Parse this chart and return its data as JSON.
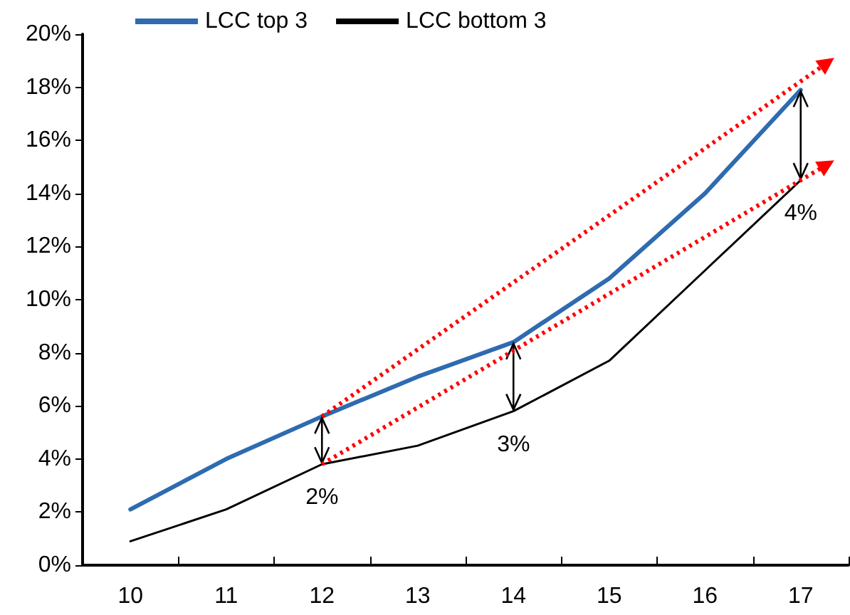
{
  "chart_data": {
    "type": "line",
    "categories": [
      "10",
      "11",
      "12",
      "13",
      "14",
      "15",
      "16",
      "17"
    ],
    "series": [
      {
        "name": "LCC top 3",
        "color": "#2e6bb0",
        "values": [
          2.1,
          4.0,
          5.6,
          7.1,
          8.4,
          10.8,
          14.0,
          17.9
        ]
      },
      {
        "name": "LCC bottom 3",
        "color": "#000000",
        "values": [
          0.9,
          2.1,
          3.8,
          4.5,
          5.8,
          7.7,
          11.1,
          14.5
        ]
      }
    ],
    "ylim": [
      0,
      20
    ],
    "yticks": [
      {
        "value": 0,
        "label": "0%"
      },
      {
        "value": 2,
        "label": "2%"
      },
      {
        "value": 4,
        "label": "4%"
      },
      {
        "value": 6,
        "label": "6%"
      },
      {
        "value": 8,
        "label": "8%"
      },
      {
        "value": 10,
        "label": "10%"
      },
      {
        "value": 12,
        "label": "12%"
      },
      {
        "value": 14,
        "label": "14%"
      },
      {
        "value": 16,
        "label": "16%"
      },
      {
        "value": 18,
        "label": "18%"
      },
      {
        "value": 20,
        "label": "20%"
      }
    ],
    "annotations": [
      {
        "text": "2%",
        "x": "12",
        "y": 3.8
      },
      {
        "text": "3%",
        "x": "14",
        "y": 5.8
      },
      {
        "text": "4%",
        "x": "17",
        "y": 14.5
      }
    ],
    "grid": false,
    "legend": "top",
    "marker": "none",
    "line_style": "solid"
  }
}
